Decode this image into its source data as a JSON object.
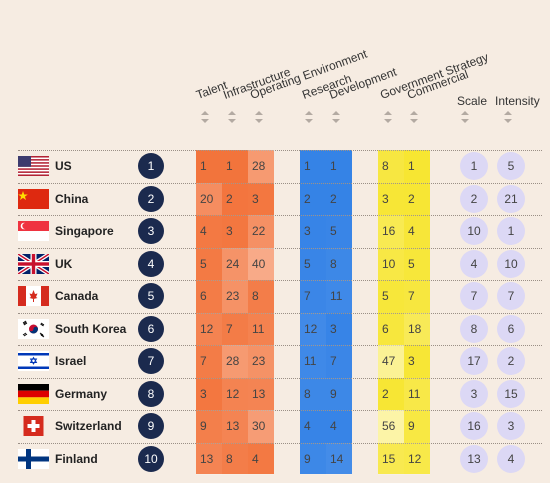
{
  "headers": {
    "talent": "Talent",
    "infrastructure": "Infrastructure",
    "operating_environment": "Operating Environment",
    "research": "Research",
    "development": "Development",
    "government_strategy": "Government Strategy",
    "commercial": "Commercial",
    "scale": "Scale",
    "intensity": "Intensity"
  },
  "colors": {
    "background": "#f6ece2",
    "orange_block": "#f26a2e",
    "blue_block": "#2f7fe6",
    "yellow_block": "#f7e52a",
    "rank_circle": "#1b2a4e",
    "pill": "#dcd8f5"
  },
  "rows": [
    {
      "country": "US",
      "flag": "us-flag-icon",
      "rank": "1",
      "talent": "1",
      "infrastructure": "1",
      "operating_environment": "28",
      "research": "1",
      "development": "1",
      "government_strategy": "8",
      "commercial": "1",
      "scale": "1",
      "intensity": "5"
    },
    {
      "country": "China",
      "flag": "china-flag-icon",
      "rank": "2",
      "talent": "20",
      "infrastructure": "2",
      "operating_environment": "3",
      "research": "2",
      "development": "2",
      "government_strategy": "3",
      "commercial": "2",
      "scale": "2",
      "intensity": "21"
    },
    {
      "country": "Singapore",
      "flag": "singapore-flag-icon",
      "rank": "3",
      "talent": "4",
      "infrastructure": "3",
      "operating_environment": "22",
      "research": "3",
      "development": "5",
      "government_strategy": "16",
      "commercial": "4",
      "scale": "10",
      "intensity": "1"
    },
    {
      "country": "UK",
      "flag": "uk-flag-icon",
      "rank": "4",
      "talent": "5",
      "infrastructure": "24",
      "operating_environment": "40",
      "research": "5",
      "development": "8",
      "government_strategy": "10",
      "commercial": "5",
      "scale": "4",
      "intensity": "10"
    },
    {
      "country": "Canada",
      "flag": "canada-flag-icon",
      "rank": "5",
      "talent": "6",
      "infrastructure": "23",
      "operating_environment": "8",
      "research": "7",
      "development": "11",
      "government_strategy": "5",
      "commercial": "7",
      "scale": "7",
      "intensity": "7"
    },
    {
      "country": "South Korea",
      "flag": "south-korea-flag-icon",
      "rank": "6",
      "talent": "12",
      "infrastructure": "7",
      "operating_environment": "11",
      "research": "12",
      "development": "3",
      "government_strategy": "6",
      "commercial": "18",
      "scale": "8",
      "intensity": "6"
    },
    {
      "country": "Israel",
      "flag": "israel-flag-icon",
      "rank": "7",
      "talent": "7",
      "infrastructure": "28",
      "operating_environment": "23",
      "research": "11",
      "development": "7",
      "government_strategy": "47",
      "commercial": "3",
      "scale": "17",
      "intensity": "2"
    },
    {
      "country": "Germany",
      "flag": "germany-flag-icon",
      "rank": "8",
      "talent": "3",
      "infrastructure": "12",
      "operating_environment": "13",
      "research": "8",
      "development": "9",
      "government_strategy": "2",
      "commercial": "11",
      "scale": "3",
      "intensity": "15"
    },
    {
      "country": "Switzerland",
      "flag": "switzerland-flag-icon",
      "rank": "9",
      "talent": "9",
      "infrastructure": "13",
      "operating_environment": "30",
      "research": "4",
      "development": "4",
      "government_strategy": "56",
      "commercial": "9",
      "scale": "16",
      "intensity": "3"
    },
    {
      "country": "Finland",
      "flag": "finland-flag-icon",
      "rank": "10",
      "talent": "13",
      "infrastructure": "8",
      "operating_environment": "4",
      "research": "9",
      "development": "14",
      "government_strategy": "15",
      "commercial": "12",
      "scale": "13",
      "intensity": "4"
    }
  ]
}
